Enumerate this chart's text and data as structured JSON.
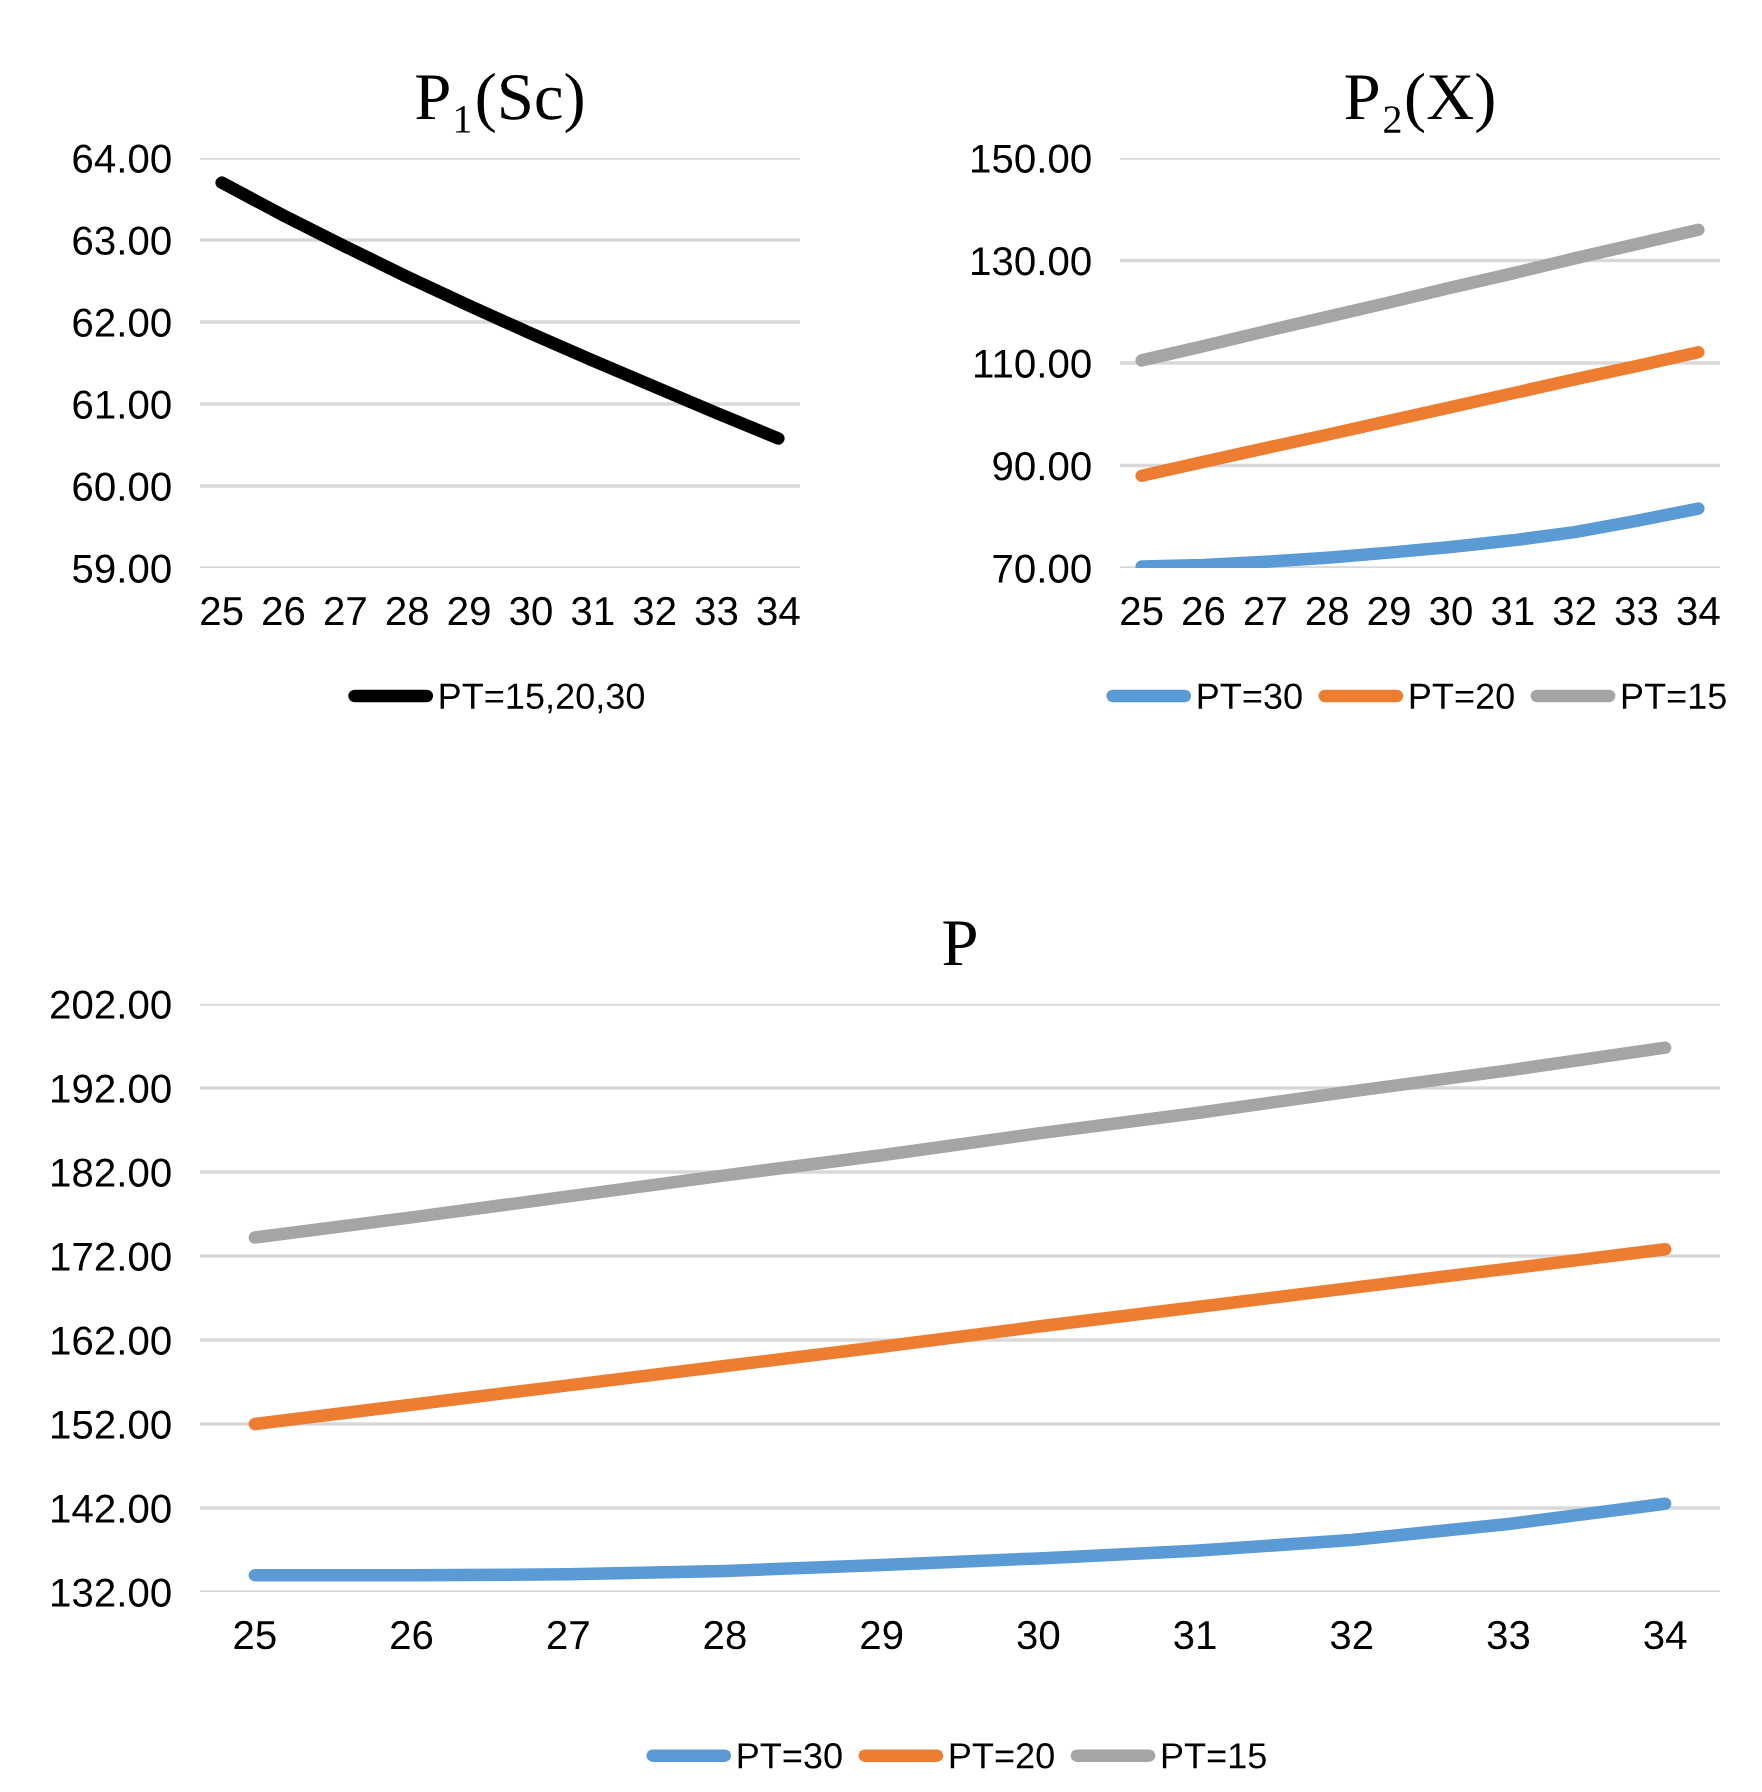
{
  "chart_data": [
    {
      "type": "line",
      "title": "P₁(Sc)",
      "categories": [
        "25",
        "26",
        "27",
        "28",
        "29",
        "30",
        "31",
        "32",
        "33",
        "34"
      ],
      "series": [
        {
          "name": "PT=15,20,30",
          "color": "#000000",
          "values": [
            63.7,
            63.3,
            62.92,
            62.55,
            62.2,
            61.86,
            61.53,
            61.21,
            60.89,
            60.58
          ]
        }
      ],
      "ylim": [
        59,
        64
      ],
      "yticks": [
        {
          "value": 59,
          "label": "59.00"
        },
        {
          "value": 60,
          "label": "60.00"
        },
        {
          "value": 61,
          "label": "61.00"
        },
        {
          "value": 62,
          "label": "62.00"
        },
        {
          "value": 63,
          "label": "63.00"
        },
        {
          "value": 64,
          "label": "64.00"
        }
      ],
      "grid": "y",
      "legend": "bottom",
      "line_style": "solid",
      "marker": "none"
    },
    {
      "type": "line",
      "title": "P₂(X)",
      "categories": [
        "25",
        "26",
        "27",
        "28",
        "29",
        "30",
        "31",
        "32",
        "33",
        "34"
      ],
      "series": [
        {
          "name": "PT=30",
          "color": "#5b9bd5",
          "values": [
            70.3,
            70.6,
            71.2,
            72.0,
            73.0,
            74.1,
            75.4,
            77.0,
            79.2,
            81.6
          ]
        },
        {
          "name": "PT=20",
          "color": "#ed7d31",
          "values": [
            88.0,
            90.7,
            93.4,
            96.0,
            98.7,
            101.4,
            104.1,
            106.8,
            109.4,
            112.1
          ]
        },
        {
          "name": "PT=15",
          "color": "#a5a5a5",
          "values": [
            110.5,
            113.3,
            116.2,
            119.0,
            121.8,
            124.7,
            127.5,
            130.4,
            133.2,
            136.0
          ]
        }
      ],
      "ylim": [
        70,
        150
      ],
      "yticks": [
        {
          "value": 70,
          "label": "70.00"
        },
        {
          "value": 90,
          "label": "90.00"
        },
        {
          "value": 110,
          "label": "110.00"
        },
        {
          "value": 130,
          "label": "130.00"
        },
        {
          "value": 150,
          "label": "150.00"
        }
      ],
      "grid": "y",
      "legend": "bottom",
      "line_style": "solid",
      "marker": "none"
    },
    {
      "type": "line",
      "title": "P",
      "categories": [
        "25",
        "26",
        "27",
        "28",
        "29",
        "30",
        "31",
        "32",
        "33",
        "34"
      ],
      "series": [
        {
          "name": "PT=30",
          "color": "#5b9bd5",
          "values": [
            134.0,
            134.0,
            134.1,
            134.5,
            135.2,
            136.0,
            136.9,
            138.2,
            140.1,
            142.5
          ]
        },
        {
          "name": "PT=20",
          "color": "#ed7d31",
          "values": [
            152.0,
            154.3,
            156.6,
            158.9,
            161.2,
            163.6,
            165.9,
            168.2,
            170.5,
            172.8
          ]
        },
        {
          "name": "PT=15",
          "color": "#a5a5a5",
          "values": [
            174.2,
            176.6,
            179.1,
            181.6,
            184.0,
            186.6,
            189.0,
            191.6,
            194.1,
            196.8
          ]
        }
      ],
      "ylim": [
        132,
        202
      ],
      "yticks": [
        {
          "value": 132,
          "label": "132.00"
        },
        {
          "value": 142,
          "label": "142.00"
        },
        {
          "value": 152,
          "label": "152.00"
        },
        {
          "value": 162,
          "label": "162.00"
        },
        {
          "value": 172,
          "label": "172.00"
        },
        {
          "value": 182,
          "label": "182.00"
        },
        {
          "value": 192,
          "label": "192.00"
        },
        {
          "value": 202,
          "label": "202.00"
        }
      ],
      "grid": "y",
      "legend": "bottom",
      "line_style": "solid",
      "marker": "none"
    }
  ]
}
